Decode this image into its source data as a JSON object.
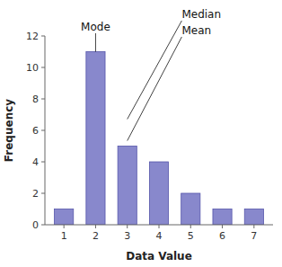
{
  "chart_data": {
    "type": "bar",
    "x": [
      1,
      2,
      3,
      4,
      5,
      6,
      7
    ],
    "values": [
      1,
      11,
      5,
      4,
      2,
      1,
      1
    ],
    "color": "#8888cc",
    "xlabel": "Data Value",
    "ylabel": "Frequency",
    "xlim": [
      0.4,
      7.6
    ],
    "xticks": [
      1,
      2,
      3,
      4,
      5,
      6,
      7
    ],
    "ylim": [
      0,
      12
    ],
    "yticks": [
      0,
      2,
      4,
      6,
      8,
      10,
      12
    ],
    "grid": false,
    "annotations": [
      "Mode",
      "Median",
      "Mean"
    ]
  }
}
